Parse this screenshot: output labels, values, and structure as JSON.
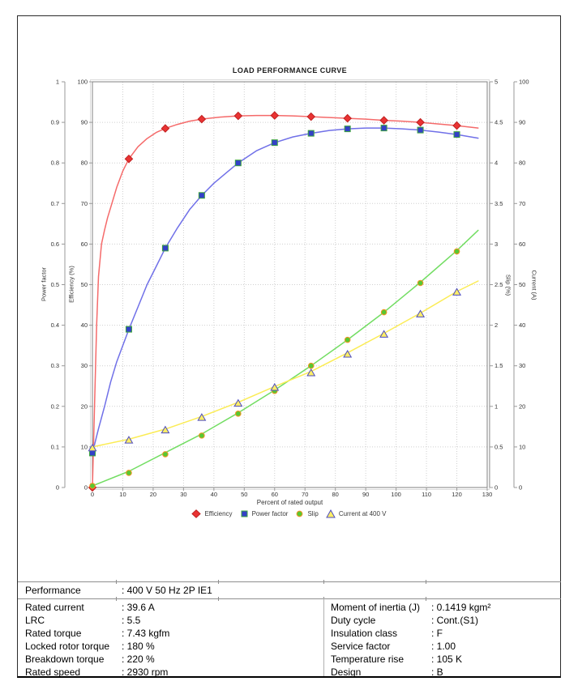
{
  "chart_data": {
    "type": "line",
    "title": "LOAD PERFORMANCE CURVE",
    "xlabel": "Percent of rated output",
    "x_axis": {
      "range": [
        0,
        130
      ],
      "tick_step": 10
    },
    "grid": "dotted",
    "legend_position": "bottom",
    "axes": [
      {
        "id": "power_factor",
        "label": "Power factor",
        "side": "left",
        "range": [
          0,
          1
        ],
        "tick_step": 0.1
      },
      {
        "id": "efficiency",
        "label": "Efficiency (%)",
        "side": "left",
        "range": [
          0,
          100
        ],
        "tick_step": 10
      },
      {
        "id": "slip",
        "label": "Slip (%)",
        "side": "right",
        "range": [
          0,
          5
        ],
        "tick_step": 0.5
      },
      {
        "id": "current",
        "label": "Current (A)",
        "side": "right",
        "range": [
          0,
          100
        ],
        "tick_step": 10
      }
    ],
    "series": [
      {
        "name": "Efficiency",
        "axis": "efficiency",
        "marker": "diamond",
        "line_color": "#f56a6a",
        "marker_fill": "#e93333",
        "marker_edge": "#c02020",
        "x": [
          0,
          12,
          24,
          36,
          48,
          60,
          72,
          84,
          96,
          108,
          120
        ],
        "values": [
          0,
          81,
          88.5,
          90.8,
          91.6,
          91.7,
          91.4,
          91,
          90.5,
          90,
          89.2
        ],
        "curve": [
          [
            0,
            0
          ],
          [
            0.7,
            20
          ],
          [
            1.4,
            40
          ],
          [
            2,
            52
          ],
          [
            3,
            60
          ],
          [
            4,
            63.5
          ],
          [
            5,
            66.5
          ],
          [
            6,
            69
          ],
          [
            8,
            74
          ],
          [
            10,
            78
          ],
          [
            12,
            81
          ],
          [
            15,
            84
          ],
          [
            18,
            86
          ],
          [
            21,
            87.5
          ],
          [
            24,
            88.5
          ],
          [
            28,
            89.5
          ],
          [
            32,
            90.3
          ],
          [
            36,
            90.8
          ],
          [
            42,
            91.3
          ],
          [
            48,
            91.6
          ],
          [
            54,
            91.7
          ],
          [
            60,
            91.7
          ],
          [
            66,
            91.6
          ],
          [
            72,
            91.4
          ],
          [
            78,
            91.2
          ],
          [
            84,
            91
          ],
          [
            90,
            90.8
          ],
          [
            96,
            90.5
          ],
          [
            102,
            90.3
          ],
          [
            108,
            90
          ],
          [
            114,
            89.6
          ],
          [
            120,
            89.2
          ],
          [
            127,
            88.6
          ]
        ]
      },
      {
        "name": "Power factor",
        "axis": "power_factor",
        "marker": "square",
        "line_color": "#7070e8",
        "marker_fill": "#3340c8",
        "marker_edge": "#3da43d",
        "x": [
          0,
          12,
          24,
          36,
          48,
          60,
          72,
          84,
          96,
          108,
          120
        ],
        "values": [
          0.085,
          0.39,
          0.59,
          0.72,
          0.8,
          0.85,
          0.873,
          0.884,
          0.886,
          0.881,
          0.87
        ],
        "curve": [
          [
            0,
            0.085
          ],
          [
            2,
            0.145
          ],
          [
            4,
            0.2
          ],
          [
            6,
            0.26
          ],
          [
            8,
            0.31
          ],
          [
            10,
            0.35
          ],
          [
            12,
            0.39
          ],
          [
            15,
            0.445
          ],
          [
            18,
            0.5
          ],
          [
            21,
            0.545
          ],
          [
            24,
            0.59
          ],
          [
            28,
            0.64
          ],
          [
            32,
            0.685
          ],
          [
            36,
            0.72
          ],
          [
            40,
            0.75
          ],
          [
            44,
            0.775
          ],
          [
            48,
            0.8
          ],
          [
            54,
            0.83
          ],
          [
            60,
            0.85
          ],
          [
            66,
            0.864
          ],
          [
            72,
            0.873
          ],
          [
            78,
            0.88
          ],
          [
            84,
            0.884
          ],
          [
            90,
            0.886
          ],
          [
            96,
            0.886
          ],
          [
            102,
            0.884
          ],
          [
            108,
            0.881
          ],
          [
            114,
            0.876
          ],
          [
            120,
            0.87
          ],
          [
            127,
            0.861
          ]
        ]
      },
      {
        "name": "Slip",
        "axis": "slip",
        "marker": "circle",
        "line_color": "#72dd62",
        "marker_fill": "#57c832",
        "marker_edge": "#f59422",
        "x": [
          0,
          12,
          24,
          36,
          48,
          60,
          72,
          84,
          96,
          108,
          120
        ],
        "values": [
          0.02,
          0.18,
          0.41,
          0.64,
          0.91,
          1.19,
          1.5,
          1.82,
          2.16,
          2.52,
          2.91
        ],
        "curve": [
          [
            0,
            0.02
          ],
          [
            12,
            0.2
          ],
          [
            24,
            0.43
          ],
          [
            36,
            0.66
          ],
          [
            48,
            0.92
          ],
          [
            60,
            1.2
          ],
          [
            72,
            1.5
          ],
          [
            84,
            1.82
          ],
          [
            96,
            2.16
          ],
          [
            108,
            2.53
          ],
          [
            120,
            2.92
          ],
          [
            127,
            3.17
          ]
        ]
      },
      {
        "name": "Current at 400 V",
        "axis": "current",
        "marker": "triangle",
        "line_color": "#fbec55",
        "marker_fill": "#fdee66",
        "marker_edge": "#4d4dc0",
        "x": [
          0,
          12,
          24,
          36,
          48,
          60,
          72,
          84,
          96,
          108,
          120
        ],
        "values": [
          10,
          11.9,
          14.4,
          17.5,
          21,
          24.9,
          28.5,
          33.1,
          38,
          43,
          48.4
        ],
        "curve": [
          [
            0,
            10
          ],
          [
            12,
            11.9
          ],
          [
            24,
            14.4
          ],
          [
            36,
            17.5
          ],
          [
            48,
            21
          ],
          [
            60,
            24.9
          ],
          [
            72,
            28.6
          ],
          [
            84,
            33.2
          ],
          [
            96,
            38
          ],
          [
            108,
            43
          ],
          [
            120,
            48.3
          ],
          [
            127,
            50.9
          ]
        ]
      }
    ]
  },
  "table": {
    "performance_label": "Performance",
    "performance_value": ": 400 V 50 Hz 2P IE1",
    "left_rows": [
      {
        "label": "Rated current",
        "value": ": 39.6 A"
      },
      {
        "label": "LRC",
        "value": ": 5.5"
      },
      {
        "label": "Rated torque",
        "value": ": 7.43 kgfm"
      },
      {
        "label": "Locked rotor torque",
        "value": ": 180 %"
      },
      {
        "label": "Breakdown torque",
        "value": ": 220 %"
      },
      {
        "label": "Rated speed",
        "value": ": 2930 rpm"
      }
    ],
    "right_rows": [
      {
        "label": "Moment of inertia (J)",
        "value": ": 0.1419 kgm²"
      },
      {
        "label": "Duty cycle",
        "value": ": Cont.(S1)"
      },
      {
        "label": "Insulation class",
        "value": ": F"
      },
      {
        "label": "Service factor",
        "value": ": 1.00"
      },
      {
        "label": "Temperature rise",
        "value": ": 105 K"
      },
      {
        "label": "Design",
        "value": ": B"
      }
    ]
  },
  "colors": {
    "grid": "#cfcfcf",
    "plot_border": "#808080",
    "axis_line": "#999999",
    "tick_text": "#333333",
    "frame_border": "#2b2b2b",
    "table_rule": "#8f8f8f"
  }
}
